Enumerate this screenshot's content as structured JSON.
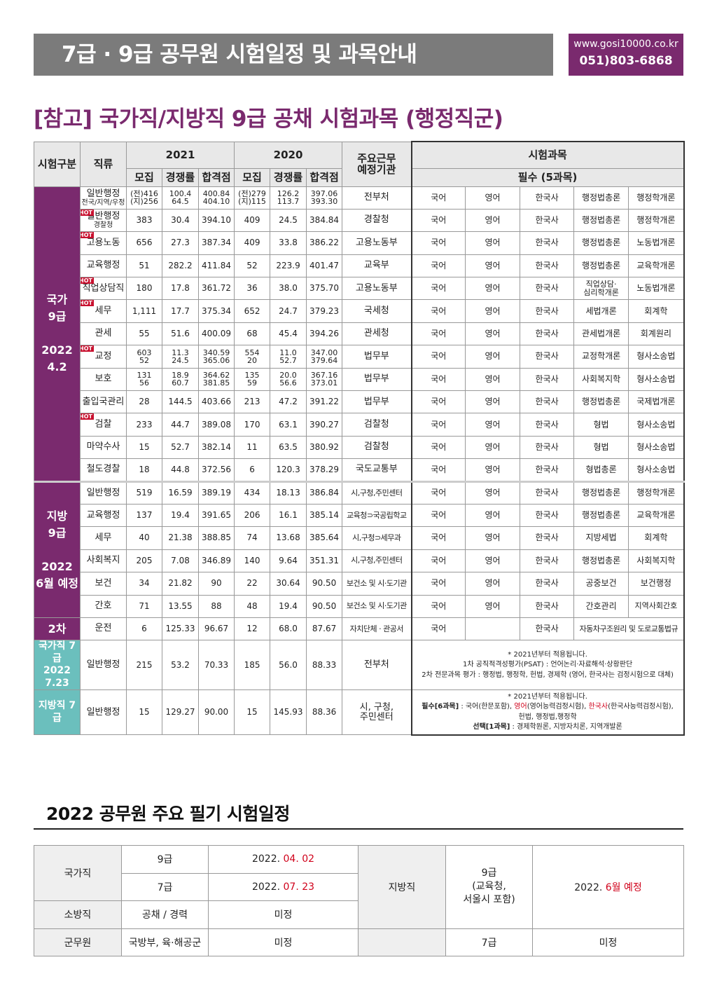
{
  "header": {
    "title": "7급 · 9급 공무원 시험일정 및 과목안내",
    "url": "www.gosi10000.co.kr",
    "phone": "051)803-6868"
  },
  "section_title": "[참고] 국가직/지방직 9급 공채 시험과목 (행정직군)",
  "table_header": {
    "exam_type": "시험구분",
    "job": "직류",
    "year_2021": "2021",
    "year_2020": "2020",
    "recruit": "모집",
    "competition": "경쟁률",
    "pass_score": "합격점",
    "agency": "주요근무\n예정기관",
    "subjects": "시험과목",
    "required": "필수 (5과목)"
  },
  "hot_label": "HOT",
  "groups": {
    "national9": "국가\n9급\n\n2022\n4.2",
    "local9": "지방\n9급\n\n2022\n6월 예정",
    "second": "2차",
    "national7": "국가직 7급\n2022\n7.23",
    "local7": "지방직 7급"
  },
  "rows": [
    {
      "job": "일반행정",
      "sub": "전국/지역/우정",
      "hot": false,
      "r21": "(전)416\n(지)256",
      "c21": "100.4\n64.5",
      "p21": "400.84\n404.10",
      "r20": "(전)279\n(지)115",
      "c20": "126.2\n113.7",
      "p20": "397.06\n393.30",
      "agency": "전부처",
      "s": [
        "국어",
        "영어",
        "한국사",
        "행정법총론",
        "행정학개론"
      ]
    },
    {
      "job": "일반행정",
      "sub": "경찰청",
      "hot": true,
      "r21": "383",
      "c21": "30.4",
      "p21": "394.10",
      "r20": "409",
      "c20": "24.5",
      "p20": "384.84",
      "agency": "경찰청",
      "s": [
        "국어",
        "영어",
        "한국사",
        "행정법총론",
        "행정학개론"
      ]
    },
    {
      "job": "고용노동",
      "sub": "",
      "hot": true,
      "r21": "656",
      "c21": "27.3",
      "p21": "387.34",
      "r20": "409",
      "c20": "33.8",
      "p20": "386.22",
      "agency": "고용노동부",
      "s": [
        "국어",
        "영어",
        "한국사",
        "행정법총론",
        "노동법개론"
      ]
    },
    {
      "job": "교육행정",
      "sub": "",
      "hot": false,
      "r21": "51",
      "c21": "282.2",
      "p21": "411.84",
      "r20": "52",
      "c20": "223.9",
      "p20": "401.47",
      "agency": "교육부",
      "s": [
        "국어",
        "영어",
        "한국사",
        "행정법총론",
        "교육학개론"
      ]
    },
    {
      "job": "직업상담직",
      "sub": "",
      "hot": true,
      "r21": "180",
      "c21": "17.8",
      "p21": "361.72",
      "r20": "36",
      "c20": "38.0",
      "p20": "375.70",
      "agency": "고용노동부",
      "s": [
        "국어",
        "영어",
        "한국사",
        "직업상담·\n심리학개론",
        "노동법개론"
      ]
    },
    {
      "job": "세무",
      "sub": "",
      "hot": true,
      "r21": "1,111",
      "c21": "17.7",
      "p21": "375.34",
      "r20": "652",
      "c20": "24.7",
      "p20": "379.23",
      "agency": "국세청",
      "s": [
        "국어",
        "영어",
        "한국사",
        "세법개론",
        "회계학"
      ]
    },
    {
      "job": "관세",
      "sub": "",
      "hot": false,
      "r21": "55",
      "c21": "51.6",
      "p21": "400.09",
      "r20": "68",
      "c20": "45.4",
      "p20": "394.26",
      "agency": "관세청",
      "s": [
        "국어",
        "영어",
        "한국사",
        "관세법개론",
        "회계원리"
      ]
    },
    {
      "job": "교정",
      "sub": "",
      "hot": true,
      "r21": "603\n52",
      "c21": "11.3\n24.5",
      "p21": "340.59\n365.06",
      "r20": "554\n20",
      "c20": "11.0\n52.7",
      "p20": "347.00\n379.64",
      "agency": "법무부",
      "s": [
        "국어",
        "영어",
        "한국사",
        "교정학개론",
        "형사소송법"
      ]
    },
    {
      "job": "보호",
      "sub": "",
      "hot": false,
      "r21": "131\n56",
      "c21": "18.9\n60.7",
      "p21": "364.62\n381.85",
      "r20": "135\n59",
      "c20": "20.0\n56.6",
      "p20": "367.16\n373.01",
      "agency": "법무부",
      "s": [
        "국어",
        "영어",
        "한국사",
        "사회복지학",
        "형사소송법"
      ]
    },
    {
      "job": "출입국관리",
      "sub": "",
      "hot": false,
      "r21": "28",
      "c21": "144.5",
      "p21": "403.66",
      "r20": "213",
      "c20": "47.2",
      "p20": "391.22",
      "agency": "법무부",
      "s": [
        "국어",
        "영어",
        "한국사",
        "행정법총론",
        "국제법개론"
      ]
    },
    {
      "job": "검찰",
      "sub": "",
      "hot": true,
      "r21": "233",
      "c21": "44.7",
      "p21": "389.08",
      "r20": "170",
      "c20": "63.1",
      "p20": "390.27",
      "agency": "검찰청",
      "s": [
        "국어",
        "영어",
        "한국사",
        "형법",
        "형사소송법"
      ]
    },
    {
      "job": "마약수사",
      "sub": "",
      "hot": false,
      "r21": "15",
      "c21": "52.7",
      "p21": "382.14",
      "r20": "11",
      "c20": "63.5",
      "p20": "380.92",
      "agency": "검찰청",
      "s": [
        "국어",
        "영어",
        "한국사",
        "형법",
        "형사소송법"
      ]
    },
    {
      "job": "철도경찰",
      "sub": "",
      "hot": false,
      "r21": "18",
      "c21": "44.8",
      "p21": "372.56",
      "r20": "6",
      "c20": "120.3",
      "p20": "378.29",
      "agency": "국도교통부",
      "s": [
        "국어",
        "영어",
        "한국사",
        "형법총론",
        "형사소송법"
      ]
    },
    {
      "job": "일반행정",
      "sub": "",
      "hot": false,
      "r21": "519",
      "c21": "16.59",
      "p21": "389.19",
      "r20": "434",
      "c20": "18.13",
      "p20": "386.84",
      "agency": "시,구청,주민센터",
      "s": [
        "국어",
        "영어",
        "한국사",
        "행정법총론",
        "행정학개론"
      ]
    },
    {
      "job": "교육행정",
      "sub": "",
      "hot": false,
      "r21": "137",
      "c21": "19.4",
      "p21": "391.65",
      "r20": "206",
      "c20": "16.1",
      "p20": "385.14",
      "agency": "교육청⊃국공립학교",
      "s": [
        "국어",
        "영어",
        "한국사",
        "행정법총론",
        "교육학개론"
      ]
    },
    {
      "job": "세무",
      "sub": "",
      "hot": false,
      "r21": "40",
      "c21": "21.38",
      "p21": "388.85",
      "r20": "74",
      "c20": "13.68",
      "p20": "385.64",
      "agency": "시,구청⊃세무과",
      "s": [
        "국어",
        "영어",
        "한국사",
        "지방세법",
        "회계학"
      ]
    },
    {
      "job": "사회복지",
      "sub": "",
      "hot": false,
      "r21": "205",
      "c21": "7.08",
      "p21": "346.89",
      "r20": "140",
      "c20": "9.64",
      "p20": "351.31",
      "agency": "시,구청,주민센터",
      "s": [
        "국어",
        "영어",
        "한국사",
        "행정법총론",
        "사회복지학"
      ]
    },
    {
      "job": "보건",
      "sub": "",
      "hot": false,
      "r21": "34",
      "c21": "21.82",
      "p21": "90",
      "r20": "22",
      "c20": "30.64",
      "p20": "90.50",
      "agency": "보건소 및 시·도기관",
      "s": [
        "국어",
        "영어",
        "한국사",
        "공중보건",
        "보건행정"
      ]
    },
    {
      "job": "간호",
      "sub": "",
      "hot": false,
      "r21": "71",
      "c21": "13.55",
      "p21": "88",
      "r20": "48",
      "c20": "19.4",
      "p20": "90.50",
      "agency": "보건소 및 시·도기관",
      "s": [
        "국어",
        "영어",
        "한국사",
        "간호관리",
        "지역사회간호"
      ]
    },
    {
      "job": "운전",
      "sub": "",
      "hot": false,
      "r21": "6",
      "c21": "125.33",
      "p21": "96.67",
      "r20": "12",
      "c20": "68.0",
      "p20": "87.67",
      "agency": "자치단체 · 관공서",
      "s": [
        "국어",
        "",
        "한국사",
        "자동차구조원리 및 도로교통법규"
      ]
    },
    {
      "job": "일반행정",
      "sub": "",
      "hot": false,
      "r21": "215",
      "c21": "53.2",
      "p21": "70.33",
      "r20": "185",
      "c20": "56.0",
      "p20": "88.33",
      "agency": "전부처"
    },
    {
      "job": "일반행정",
      "sub": "",
      "hot": false,
      "r21": "15",
      "c21": "129.27",
      "p21": "90.00",
      "r20": "15",
      "c20": "145.93",
      "p20": "88.36",
      "agency": "시, 구청,\n주민센터"
    }
  ],
  "notes": {
    "n7_line1": "* 2021년부터 적용됩니다.",
    "n7_line2": "1차 공직적격성평가(PSAT) : 언어논리·자료해석·상황판단",
    "n7_line3": "2차 전문과목 평가 : 행정법, 행정학, 헌법, 경제학 (영어, 한국사는 검정시험으로 대체)",
    "l7_line1": "* 2021년부터 적용됩니다.",
    "l7_req_label": "필수[6과목]",
    "l7_req_a": " : 국어(한문포함), ",
    "l7_eng": "영어",
    "l7_req_b": "(영어능력검정시험), ",
    "l7_hist": "한국사",
    "l7_req_c": "(한국사능력검정시험),",
    "l7_line3": "헌법, 행정법,행정학",
    "l7_opt_label": "선택[1과목]",
    "l7_opt": " : 경제학원론, 지방자치론, 지역개발론"
  },
  "schedule": {
    "title": "2022 공무원 주요 필기 시험일정",
    "national": "국가직",
    "n9": "9급",
    "n9_date_a": "2022. ",
    "n9_date_b": "04. 02",
    "n7": "7급",
    "n7_date_a": "2022. ",
    "n7_date_b": "07. 23",
    "fire": "소방직",
    "fire_type": "공채 / 경력",
    "fire_date": "미정",
    "military": "군무원",
    "military_type": "국방부, 육·해공군",
    "military_date": "미정",
    "local": "지방직",
    "l9": "9급\n(교육청,\n서울시 포함)",
    "l9_date_a": "2022. ",
    "l9_date_b": "6월 예정",
    "l7": "7급",
    "l7_date": "미정"
  }
}
